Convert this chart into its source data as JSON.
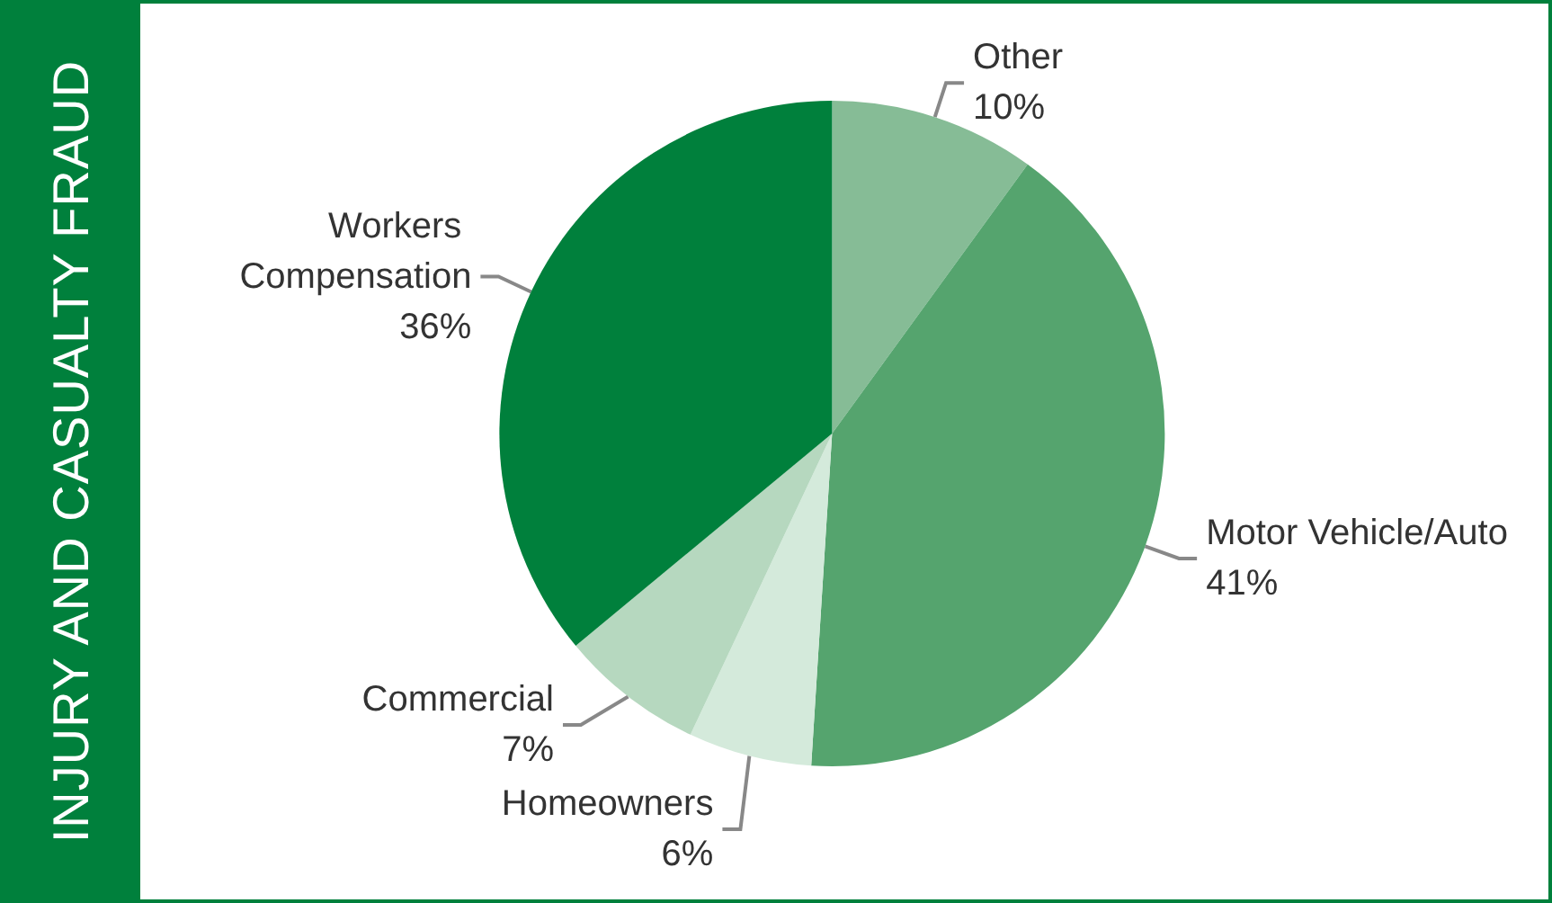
{
  "chart_data": {
    "type": "pie",
    "title": "INJURY AND CASUALTY FRAUD",
    "categories": [
      "Other",
      "Motor Vehicle/Auto",
      "Homeowners",
      "Commercial",
      "Workers Compensation"
    ],
    "values": [
      10,
      41,
      6,
      7,
      36
    ],
    "colors": [
      "#86bc96",
      "#55a46e",
      "#d4eadb",
      "#b6d8bf",
      "#00803c"
    ],
    "value_labels": [
      "10%",
      "41%",
      "6%",
      "7%",
      "36%"
    ],
    "legend": false
  }
}
